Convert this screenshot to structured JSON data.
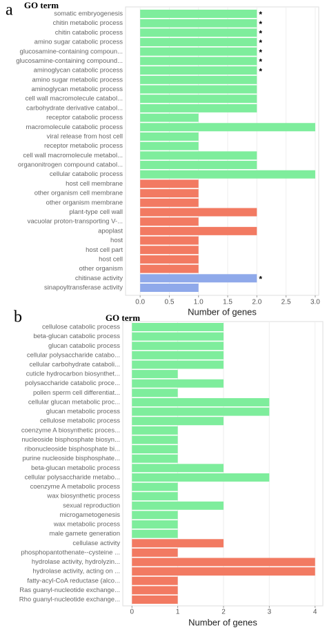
{
  "chart_data": [
    {
      "type": "bar",
      "panel_label": "a",
      "title": "GO term",
      "x_label": "Number of genes",
      "categories": [
        "somatic embryogenesis",
        "chitin metabolic process",
        "chitin catabolic process",
        "amino sugar catabolic process",
        "glucosamine-containing compoun...",
        "glucosamine-containing compound...",
        "aminoglycan catabolic process",
        "amino sugar metabolic process",
        "aminoglycan metabolic process",
        "cell wall macromolecule catabol...",
        "carbohydrate derivative catabol...",
        "receptor catabolic process",
        "macromolecule catabolic process",
        "viral release from host cell",
        "receptor metabolic process",
        "cell wall macromolecule metabol...",
        "organonitrogen compound catabol...",
        "cellular catabolic process",
        "host cell membrane",
        "other organism cell membrane",
        "other organism membrane",
        "plant-type cell wall",
        "vacuolar proton-transporting V-...",
        "apoplast",
        "host",
        "host cell part",
        "host cell",
        "other organism",
        "chitinase activity",
        "sinapoyltransferase activity"
      ],
      "values": [
        2,
        2,
        2,
        2,
        2,
        2,
        2,
        2,
        2,
        2,
        2,
        1,
        3,
        1,
        1,
        2,
        2,
        3,
        1,
        1,
        1,
        2,
        1,
        2,
        1,
        1,
        1,
        1,
        2,
        1
      ],
      "colors": [
        "#7eed9c",
        "#7eed9c",
        "#7eed9c",
        "#7eed9c",
        "#7eed9c",
        "#7eed9c",
        "#7eed9c",
        "#7eed9c",
        "#7eed9c",
        "#7eed9c",
        "#7eed9c",
        "#7eed9c",
        "#7eed9c",
        "#7eed9c",
        "#7eed9c",
        "#7eed9c",
        "#7eed9c",
        "#7eed9c",
        "#f27a62",
        "#f27a62",
        "#f27a62",
        "#f27a62",
        "#f27a62",
        "#f27a62",
        "#f27a62",
        "#f27a62",
        "#f27a62",
        "#f27a62",
        "#8fa9ea",
        "#8fa9ea"
      ],
      "markers": [
        "*",
        "*",
        "*",
        "*",
        "*",
        "*",
        "*",
        null,
        null,
        null,
        null,
        null,
        null,
        null,
        null,
        null,
        null,
        null,
        null,
        null,
        null,
        null,
        null,
        null,
        null,
        null,
        null,
        null,
        "*",
        null
      ],
      "xlim": [
        -0.25,
        3.06
      ],
      "xticks": [
        {
          "value": 0,
          "label": "0.0"
        },
        {
          "value": 0.5,
          "label": "0.5"
        },
        {
          "value": 1,
          "label": "1.0"
        },
        {
          "value": 1.5,
          "label": "1.5"
        },
        {
          "value": 2,
          "label": "2.0"
        },
        {
          "value": 2.5,
          "label": "2.5"
        },
        {
          "value": 3,
          "label": "3.0"
        }
      ],
      "grid": true
    },
    {
      "type": "bar",
      "panel_label": "b",
      "title": "GO term",
      "x_label": "Number of genes",
      "categories": [
        "cellulose catabolic process",
        "beta-glucan catabolic process",
        "glucan catabolic process",
        "cellular polysaccharide catabo...",
        "cellular carbohydrate cataboli...",
        "cuticle hydrocarbon biosynthet...",
        "polysaccharide catabolic proce...",
        "pollen sperm cell differentiat...",
        "cellular glucan metabolic proc...",
        "glucan metabolic process",
        "cellulose metabolic process",
        "coenzyme A biosynthetic proces...",
        "nucleoside bisphosphate biosyn...",
        "ribonucleoside bisphosphate bi...",
        "purine nucleoside bisphosphate...",
        "beta-glucan metabolic process",
        "cellular polysaccharide metabo...",
        "coenzyme A metabolic process",
        "wax biosynthetic process",
        "sexual reproduction",
        "microgametogenesis",
        "wax metabolic process",
        "male gamete generation",
        "cellulase activity",
        "phosphopantothenate--cysteine ...",
        "hydrolase activity, hydrolyzin...",
        "hydrolase activity, acting on ...",
        "fatty-acyl-CoA reductase (alco...",
        "Ras guanyl-nucleotide exchange...",
        "Rho guanyl-nucleotide exchange..."
      ],
      "values": [
        2,
        2,
        2,
        2,
        2,
        1,
        2,
        1,
        3,
        3,
        2,
        1,
        1,
        1,
        1,
        2,
        3,
        1,
        1,
        2,
        1,
        1,
        1,
        2,
        1,
        4,
        4,
        1,
        1,
        1
      ],
      "colors": [
        "#7eed9c",
        "#7eed9c",
        "#7eed9c",
        "#7eed9c",
        "#7eed9c",
        "#7eed9c",
        "#7eed9c",
        "#7eed9c",
        "#7eed9c",
        "#7eed9c",
        "#7eed9c",
        "#7eed9c",
        "#7eed9c",
        "#7eed9c",
        "#7eed9c",
        "#7eed9c",
        "#7eed9c",
        "#7eed9c",
        "#7eed9c",
        "#7eed9c",
        "#7eed9c",
        "#7eed9c",
        "#7eed9c",
        "#f27a62",
        "#f27a62",
        "#f27a62",
        "#f27a62",
        "#f27a62",
        "#f27a62",
        "#f27a62"
      ],
      "xlim": [
        -0.2,
        4.17
      ],
      "xticks": [
        0,
        1,
        2,
        3,
        4
      ],
      "grid": true
    }
  ]
}
